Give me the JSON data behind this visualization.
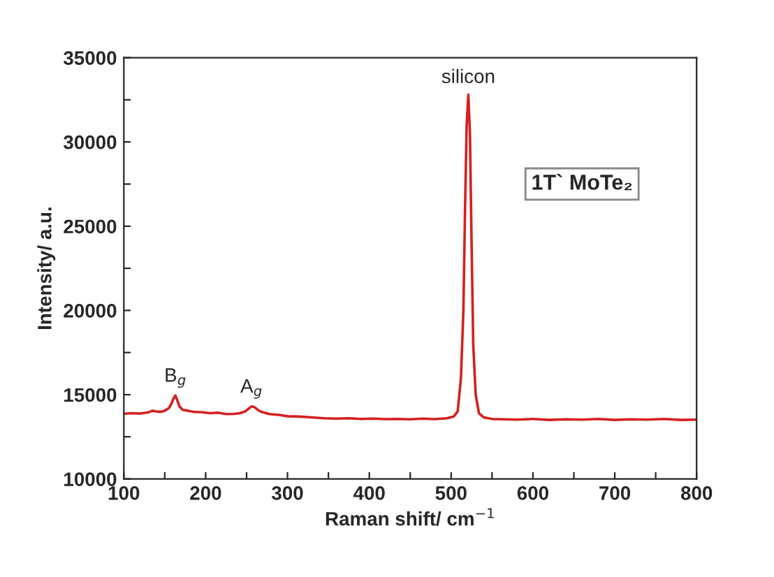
{
  "chart_data": {
    "type": "line",
    "xlabel": "Raman shift/ cm$^{−1}$",
    "ylabel": "Intensity/ a.u.",
    "annotations": [
      {
        "text": "B$_{g}$",
        "x": 163,
        "y": 14950
      },
      {
        "text": "A$_{g}$",
        "x": 256,
        "y": 14300
      },
      {
        "text": "silicon",
        "x": 521,
        "y": 32800
      },
      "1T` MoTe₂"
    ],
    "series": [
      {
        "color": "#d42020",
        "x": [
          100,
          110,
          120,
          130,
          135,
          140,
          145,
          150,
          155,
          158,
          161,
          163,
          165,
          168,
          172,
          178,
          185,
          195,
          205,
          215,
          225,
          235,
          242,
          248,
          252,
          256,
          260,
          265,
          270,
          278,
          290,
          300,
          315,
          330,
          345,
          360,
          375,
          390,
          405,
          420,
          435,
          450,
          465,
          480,
          495,
          503,
          508,
          512,
          515,
          517,
          519,
          521,
          523,
          525,
          527,
          530,
          534,
          540,
          550,
          565,
          580,
          600,
          620,
          640,
          660,
          680,
          700,
          720,
          740,
          760,
          780,
          800
        ],
        "values": [
          13870,
          13900,
          13880,
          13950,
          14050,
          14000,
          13980,
          14050,
          14200,
          14450,
          14800,
          14950,
          14700,
          14300,
          14100,
          14050,
          13980,
          13960,
          13900,
          13930,
          13850,
          13860,
          13900,
          14000,
          14150,
          14300,
          14250,
          14050,
          13950,
          13850,
          13800,
          13720,
          13700,
          13650,
          13600,
          13580,
          13600,
          13560,
          13580,
          13550,
          13560,
          13540,
          13580,
          13550,
          13600,
          13700,
          14000,
          16000,
          20000,
          26000,
          31000,
          32800,
          30500,
          24000,
          18000,
          15000,
          13900,
          13650,
          13560,
          13540,
          13520,
          13560,
          13500,
          13540,
          13520,
          13560,
          13500,
          13540,
          13520,
          13560,
          13500,
          13520
        ]
      }
    ],
    "xlim": [
      100,
      800
    ],
    "ylim": [
      10000,
      35000
    ],
    "xticks": [
      100,
      {
        "value": 150,
        "label": null
      },
      200,
      {
        "value": 250,
        "label": null
      },
      300,
      {
        "value": 350,
        "label": null
      },
      400,
      {
        "value": 450,
        "label": null
      },
      500,
      {
        "value": 550,
        "label": null
      },
      600,
      {
        "value": 650,
        "label": null
      },
      700,
      {
        "value": 750,
        "label": null
      },
      800
    ],
    "yticks": [
      10000,
      {
        "value": 12500,
        "label": null
      },
      15000,
      {
        "value": 17500,
        "label": null
      },
      20000,
      {
        "value": 22500,
        "label": null
      },
      25000,
      {
        "value": 27500,
        "label": null
      },
      30000,
      {
        "value": 32500,
        "label": null
      },
      35000
    ],
    "grid": false,
    "legend": false,
    "marker": "none",
    "line_style": "solid"
  }
}
